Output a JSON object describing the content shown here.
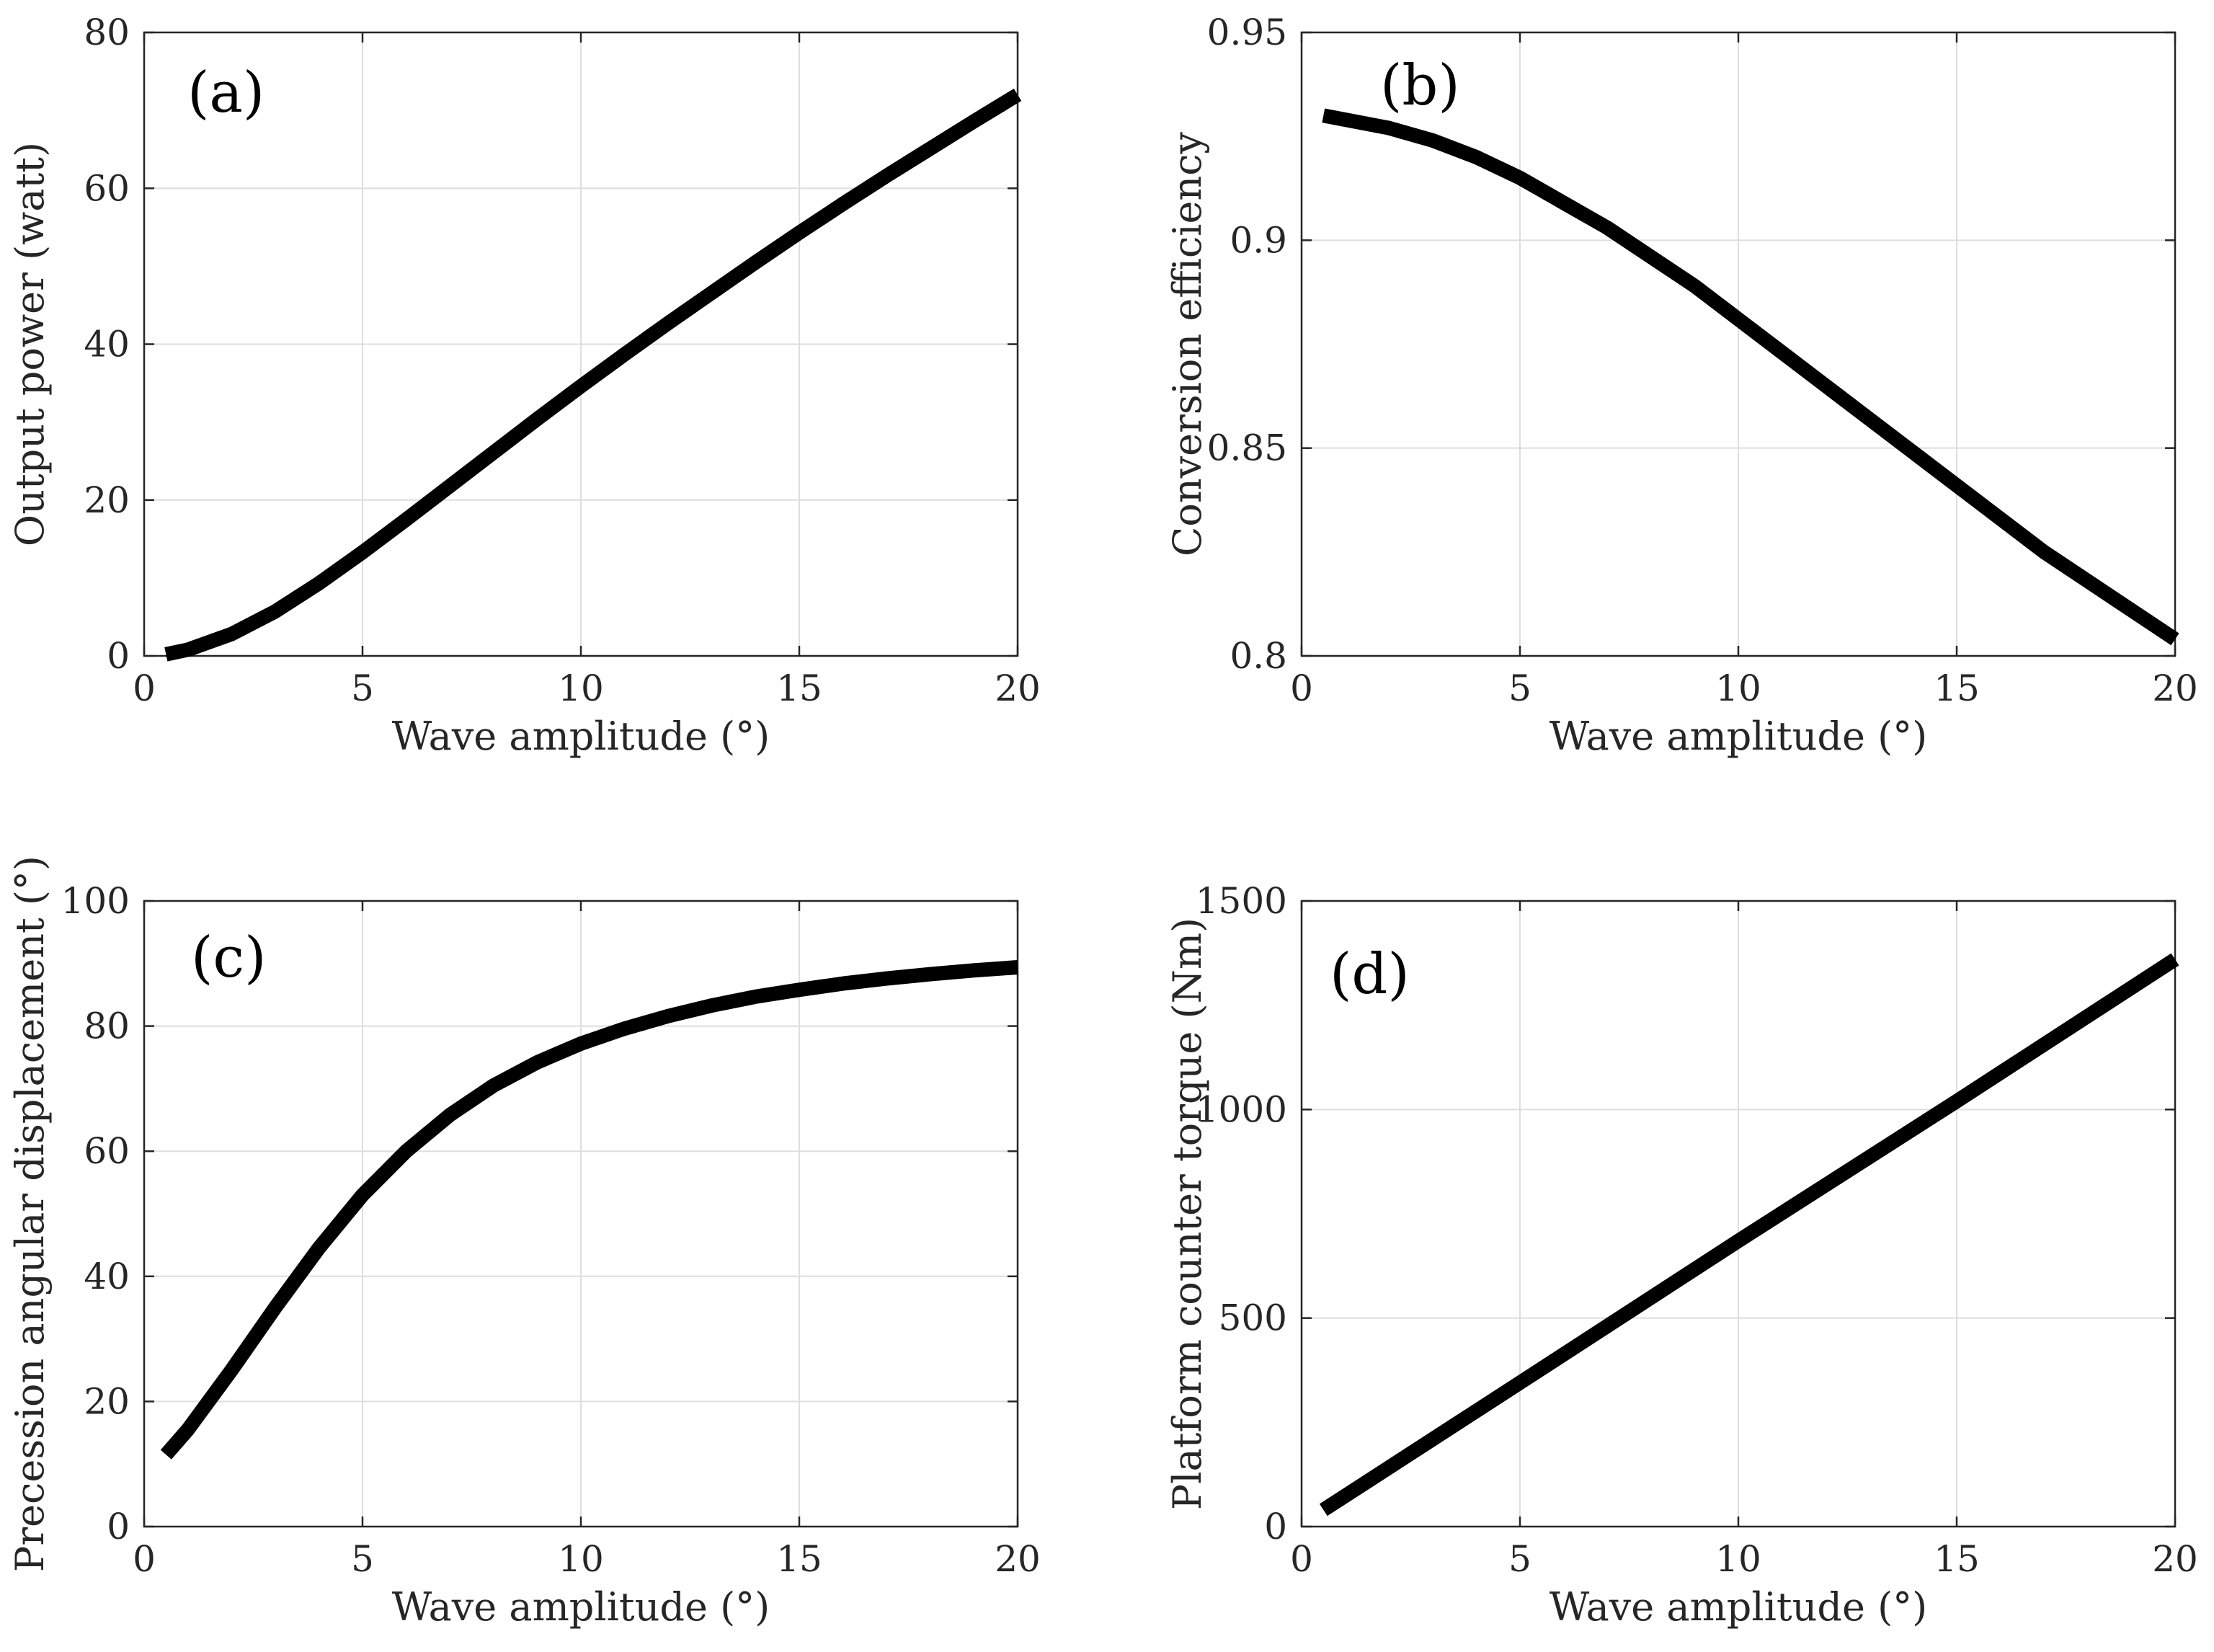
{
  "chart_data": [
    {
      "type": "line",
      "panel_label": "(a)",
      "xlabel": "Wave amplitude (°)",
      "ylabel": "Output power (watt)",
      "xlim": [
        0,
        20
      ],
      "ylim": [
        0,
        80
      ],
      "xticks": [
        "0",
        "5",
        "10",
        "15",
        "20"
      ],
      "yticks": [
        "0",
        "20",
        "40",
        "60",
        "80"
      ],
      "grid": true,
      "series": [
        {
          "name": "Output power",
          "color": "#000000",
          "x": [
            0.5,
            1,
            2,
            3,
            4,
            5,
            6,
            7,
            8,
            9,
            10,
            11,
            12,
            13,
            14,
            15,
            16,
            17,
            18,
            19,
            20
          ],
          "y": [
            0.2,
            0.8,
            2.8,
            5.7,
            9.3,
            13.3,
            17.5,
            21.8,
            26.1,
            30.4,
            34.6,
            38.7,
            42.7,
            46.6,
            50.5,
            54.3,
            58.0,
            61.6,
            65.1,
            68.6,
            72.0
          ]
        }
      ]
    },
    {
      "type": "line",
      "panel_label": "(b)",
      "xlabel": "Wave amplitude (°)",
      "ylabel": "Conversion efficiency",
      "xlim": [
        0,
        20
      ],
      "ylim": [
        0.8,
        0.95
      ],
      "xticks": [
        "0",
        "5",
        "10",
        "15",
        "20"
      ],
      "yticks": [
        "0.8",
        "0.85",
        "0.9",
        "0.95"
      ],
      "grid": true,
      "series": [
        {
          "name": "Conversion efficiency",
          "color": "#000000",
          "x": [
            0.5,
            1,
            2,
            3,
            4,
            5,
            6,
            7,
            8,
            9,
            10,
            11,
            12,
            13,
            14,
            15,
            16,
            17,
            18,
            19,
            20
          ],
          "y": [
            0.93,
            0.929,
            0.927,
            0.924,
            0.92,
            0.915,
            0.909,
            0.903,
            0.896,
            0.889,
            0.881,
            0.873,
            0.865,
            0.857,
            0.849,
            0.841,
            0.833,
            0.825,
            0.818,
            0.811,
            0.804
          ]
        }
      ]
    },
    {
      "type": "line",
      "panel_label": "(c)",
      "xlabel": "Wave amplitude (°)",
      "ylabel": "Precession angular displacement (°)",
      "xlim": [
        0,
        20
      ],
      "ylim": [
        0,
        100
      ],
      "xticks": [
        "0",
        "5",
        "10",
        "15",
        "20"
      ],
      "yticks": [
        "0",
        "20",
        "40",
        "60",
        "80",
        "100"
      ],
      "grid": true,
      "series": [
        {
          "name": "Precession angular displacement",
          "color": "#000000",
          "x": [
            0.5,
            1,
            2,
            3,
            4,
            5,
            6,
            7,
            8,
            9,
            10,
            11,
            12,
            13,
            14,
            15,
            16,
            17,
            18,
            19,
            20
          ],
          "y": [
            11.5,
            15.5,
            25.0,
            35.0,
            44.5,
            53.0,
            60.0,
            65.8,
            70.5,
            74.2,
            77.2,
            79.6,
            81.6,
            83.3,
            84.7,
            85.8,
            86.8,
            87.6,
            88.3,
            88.9,
            89.4
          ]
        }
      ]
    },
    {
      "type": "line",
      "panel_label": "(d)",
      "xlabel": "Wave amplitude (°)",
      "ylabel": "Platform counter torque (Nm)",
      "xlim": [
        0,
        20
      ],
      "ylim": [
        0,
        1500
      ],
      "xticks": [
        "0",
        "5",
        "10",
        "15",
        "20"
      ],
      "yticks": [
        "0",
        "500",
        "1000",
        "1500"
      ],
      "grid": true,
      "series": [
        {
          "name": "Platform counter torque",
          "color": "#000000",
          "x": [
            0.5,
            5,
            10,
            15,
            20
          ],
          "y": [
            40,
            345,
            685,
            1020,
            1360
          ]
        }
      ]
    }
  ]
}
